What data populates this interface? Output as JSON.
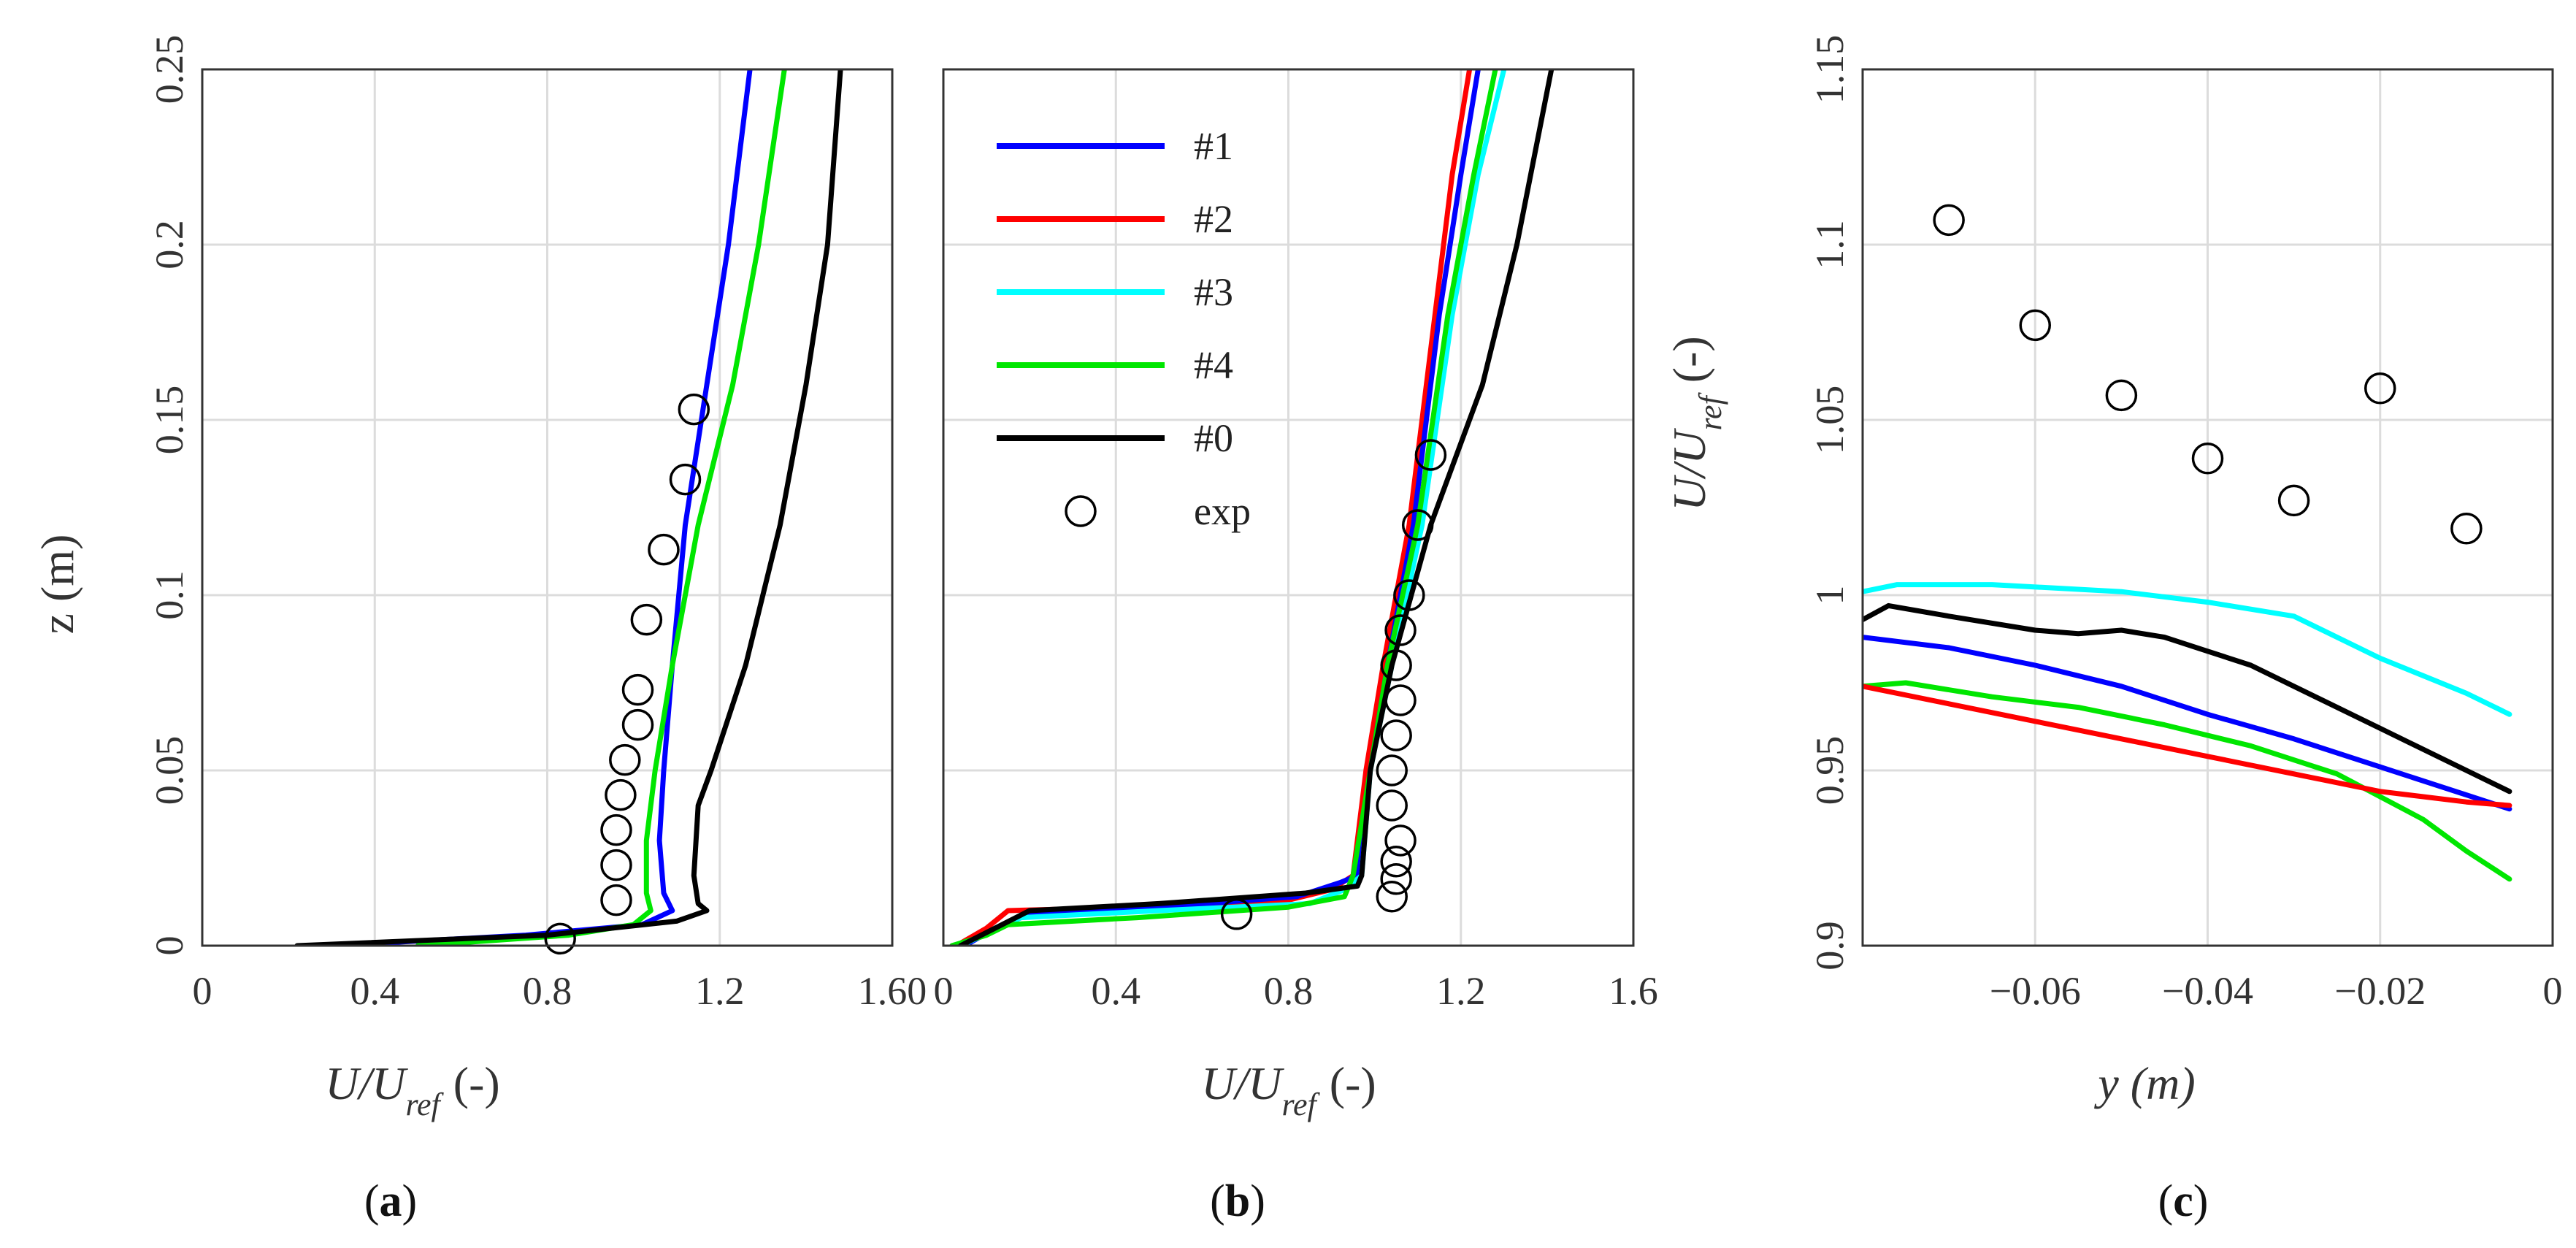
{
  "colors": {
    "#1": "#0000ff",
    "#2": "#ff0000",
    "#3": "#00ffff",
    "#4": "#00e600",
    "#0": "#000000",
    "exp": "#000000"
  },
  "chart_data": [
    {
      "type": "line",
      "id": "a",
      "panel_label": "a",
      "xlabel": "U/U",
      "xlabel_sub": "ref",
      "xlabel_unit": "(-)",
      "ylabel": "z (m)",
      "xlim": [
        0,
        1.6
      ],
      "ylim": [
        0,
        0.25
      ],
      "xticks": [
        "0",
        "0.4",
        "0.8",
        "1.2",
        "1.60"
      ],
      "yticks": [
        "0",
        "0.05",
        "0.1",
        "0.15",
        "0.2",
        "0.25"
      ],
      "series": [
        {
          "name": "#1",
          "points": [
            [
              0.3,
              0
            ],
            [
              0.75,
              0.003
            ],
            [
              1.02,
              0.006
            ],
            [
              1.09,
              0.01
            ],
            [
              1.07,
              0.015
            ],
            [
              1.06,
              0.03
            ],
            [
              1.07,
              0.05
            ],
            [
              1.09,
              0.08
            ],
            [
              1.12,
              0.12
            ],
            [
              1.17,
              0.16
            ],
            [
              1.22,
              0.2
            ],
            [
              1.27,
              0.25
            ]
          ]
        },
        {
          "name": "#4",
          "points": [
            [
              0.5,
              0
            ],
            [
              0.85,
              0.003
            ],
            [
              1.0,
              0.006
            ],
            [
              1.04,
              0.01
            ],
            [
              1.03,
              0.015
            ],
            [
              1.03,
              0.03
            ],
            [
              1.05,
              0.05
            ],
            [
              1.09,
              0.08
            ],
            [
              1.15,
              0.12
            ],
            [
              1.23,
              0.16
            ],
            [
              1.29,
              0.2
            ],
            [
              1.35,
              0.25
            ]
          ]
        },
        {
          "name": "#0",
          "points": [
            [
              0.22,
              0
            ],
            [
              0.8,
              0.003
            ],
            [
              1.1,
              0.007
            ],
            [
              1.17,
              0.01
            ],
            [
              1.15,
              0.012
            ],
            [
              1.14,
              0.02
            ],
            [
              1.15,
              0.04
            ],
            [
              1.18,
              0.05
            ],
            [
              1.26,
              0.08
            ],
            [
              1.34,
              0.12
            ],
            [
              1.4,
              0.16
            ],
            [
              1.45,
              0.2
            ],
            [
              1.48,
              0.25
            ]
          ]
        }
      ],
      "exp": [
        [
          0.83,
          0.002
        ],
        [
          0.96,
          0.013
        ],
        [
          0.96,
          0.023
        ],
        [
          0.96,
          0.033
        ],
        [
          0.97,
          0.043
        ],
        [
          0.98,
          0.053
        ],
        [
          1.01,
          0.063
        ],
        [
          1.01,
          0.073
        ],
        [
          1.03,
          0.093
        ],
        [
          1.07,
          0.113
        ],
        [
          1.12,
          0.133
        ],
        [
          1.14,
          0.153
        ]
      ]
    },
    {
      "type": "line",
      "id": "b",
      "panel_label": "b",
      "xlabel": "U/U",
      "xlabel_sub": "ref",
      "xlabel_unit": "(-)",
      "xlim": [
        0,
        1.6
      ],
      "ylim": [
        0,
        0.25
      ],
      "xticks": [
        "0",
        "0.4",
        "0.8",
        "1.2",
        "1.6"
      ],
      "legend": {
        "position": "top-left",
        "entries": [
          "#1",
          "#2",
          "#3",
          "#4",
          "#0",
          "exp"
        ]
      },
      "series": [
        {
          "name": "#2",
          "points": [
            [
              0.03,
              0
            ],
            [
              0.1,
              0.005
            ],
            [
              0.15,
              0.01
            ],
            [
              0.45,
              0.011
            ],
            [
              0.8,
              0.013
            ],
            [
              0.9,
              0.016
            ],
            [
              0.95,
              0.02
            ],
            [
              0.98,
              0.05
            ],
            [
              1.02,
              0.08
            ],
            [
              1.08,
              0.12
            ],
            [
              1.14,
              0.18
            ],
            [
              1.18,
              0.22
            ],
            [
              1.22,
              0.25
            ]
          ]
        },
        {
          "name": "#1",
          "points": [
            [
              0.05,
              0
            ],
            [
              0.12,
              0.005
            ],
            [
              0.2,
              0.009
            ],
            [
              0.5,
              0.011
            ],
            [
              0.82,
              0.014
            ],
            [
              0.92,
              0.018
            ],
            [
              0.96,
              0.02
            ],
            [
              0.99,
              0.05
            ],
            [
              1.03,
              0.08
            ],
            [
              1.09,
              0.12
            ],
            [
              1.15,
              0.18
            ],
            [
              1.2,
              0.22
            ],
            [
              1.24,
              0.25
            ]
          ]
        },
        {
          "name": "#3",
          "points": [
            [
              0.04,
              0
            ],
            [
              0.11,
              0.004
            ],
            [
              0.18,
              0.008
            ],
            [
              0.5,
              0.01
            ],
            [
              0.85,
              0.012
            ],
            [
              0.93,
              0.016
            ],
            [
              0.97,
              0.02
            ],
            [
              0.99,
              0.05
            ],
            [
              1.04,
              0.08
            ],
            [
              1.11,
              0.12
            ],
            [
              1.18,
              0.18
            ],
            [
              1.24,
              0.22
            ],
            [
              1.3,
              0.25
            ]
          ]
        },
        {
          "name": "#4",
          "points": [
            [
              0.02,
              0
            ],
            [
              0.1,
              0.003
            ],
            [
              0.15,
              0.006
            ],
            [
              0.45,
              0.008
            ],
            [
              0.8,
              0.011
            ],
            [
              0.93,
              0.014
            ],
            [
              0.95,
              0.02
            ],
            [
              0.99,
              0.05
            ],
            [
              1.03,
              0.08
            ],
            [
              1.1,
              0.12
            ],
            [
              1.17,
              0.18
            ],
            [
              1.23,
              0.22
            ],
            [
              1.28,
              0.25
            ]
          ]
        },
        {
          "name": "#0",
          "points": [
            [
              0.04,
              0
            ],
            [
              0.12,
              0.005
            ],
            [
              0.2,
              0.01
            ],
            [
              0.5,
              0.012
            ],
            [
              0.84,
              0.015
            ],
            [
              0.96,
              0.017
            ],
            [
              0.97,
              0.02
            ],
            [
              0.99,
              0.05
            ],
            [
              1.04,
              0.08
            ],
            [
              1.13,
              0.12
            ],
            [
              1.25,
              0.16
            ],
            [
              1.33,
              0.2
            ],
            [
              1.41,
              0.25
            ]
          ]
        }
      ],
      "exp": [
        [
          0.68,
          0.009
        ],
        [
          1.04,
          0.014
        ],
        [
          1.05,
          0.019
        ],
        [
          1.05,
          0.024
        ],
        [
          1.06,
          0.03
        ],
        [
          1.04,
          0.04
        ],
        [
          1.04,
          0.05
        ],
        [
          1.05,
          0.06
        ],
        [
          1.06,
          0.07
        ],
        [
          1.05,
          0.08
        ],
        [
          1.06,
          0.09
        ],
        [
          1.08,
          0.1
        ],
        [
          1.1,
          0.12
        ],
        [
          1.13,
          0.14
        ]
      ]
    },
    {
      "type": "line",
      "id": "c",
      "panel_label": "c",
      "xlabel": "y (m)",
      "ylabel": "U/U",
      "ylabel_sub": "ref",
      "ylabel_unit": "(-)",
      "xlim": [
        -0.08,
        0
      ],
      "ylim": [
        0.9,
        1.15
      ],
      "xticks": [
        "-0.06",
        "-0.04",
        "-0.02",
        "0"
      ],
      "xtick_values": [
        -0.06,
        -0.04,
        -0.02,
        0
      ],
      "yticks": [
        "0.9",
        "0.95",
        "1",
        "1.05",
        "1.1",
        "1.15"
      ],
      "series": [
        {
          "name": "#3",
          "points": [
            [
              -0.08,
              1.001
            ],
            [
              -0.076,
              1.003
            ],
            [
              -0.065,
              1.003
            ],
            [
              -0.05,
              1.001
            ],
            [
              -0.04,
              0.998
            ],
            [
              -0.03,
              0.994
            ],
            [
              -0.02,
              0.982
            ],
            [
              -0.01,
              0.972
            ],
            [
              -0.005,
              0.966
            ]
          ]
        },
        {
          "name": "#0",
          "points": [
            [
              -0.08,
              0.993
            ],
            [
              -0.077,
              0.997
            ],
            [
              -0.07,
              0.994
            ],
            [
              -0.06,
              0.99
            ],
            [
              -0.055,
              0.989
            ],
            [
              -0.05,
              0.99
            ],
            [
              -0.045,
              0.988
            ],
            [
              -0.04,
              0.984
            ],
            [
              -0.035,
              0.98
            ],
            [
              -0.03,
              0.974
            ],
            [
              -0.02,
              0.962
            ],
            [
              -0.01,
              0.95
            ],
            [
              -0.005,
              0.944
            ]
          ]
        },
        {
          "name": "#1",
          "points": [
            [
              -0.08,
              0.988
            ],
            [
              -0.07,
              0.985
            ],
            [
              -0.06,
              0.98
            ],
            [
              -0.05,
              0.974
            ],
            [
              -0.04,
              0.966
            ],
            [
              -0.03,
              0.959
            ],
            [
              -0.02,
              0.951
            ],
            [
              -0.01,
              0.943
            ],
            [
              -0.005,
              0.939
            ]
          ]
        },
        {
          "name": "#4",
          "points": [
            [
              -0.08,
              0.974
            ],
            [
              -0.075,
              0.975
            ],
            [
              -0.065,
              0.971
            ],
            [
              -0.055,
              0.968
            ],
            [
              -0.045,
              0.963
            ],
            [
              -0.035,
              0.957
            ],
            [
              -0.025,
              0.949
            ],
            [
              -0.015,
              0.936
            ],
            [
              -0.01,
              0.927
            ],
            [
              -0.005,
              0.919
            ]
          ]
        },
        {
          "name": "#2",
          "points": [
            [
              -0.08,
              0.974
            ],
            [
              -0.07,
              0.969
            ],
            [
              -0.06,
              0.964
            ],
            [
              -0.05,
              0.959
            ],
            [
              -0.04,
              0.954
            ],
            [
              -0.03,
              0.949
            ],
            [
              -0.02,
              0.944
            ],
            [
              -0.01,
              0.941
            ],
            [
              -0.005,
              0.94
            ]
          ]
        }
      ],
      "exp": [
        [
          -0.07,
          1.107
        ],
        [
          -0.06,
          1.077
        ],
        [
          -0.05,
          1.057
        ],
        [
          -0.04,
          1.039
        ],
        [
          -0.03,
          1.027
        ],
        [
          -0.02,
          1.059
        ],
        [
          -0.01,
          1.019
        ]
      ]
    }
  ]
}
